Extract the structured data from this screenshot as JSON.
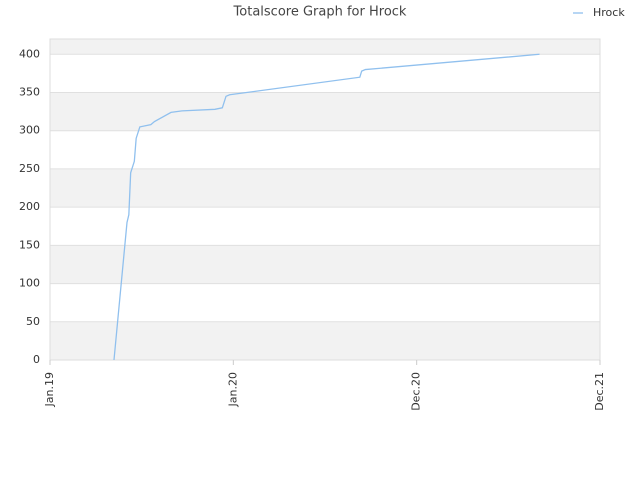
{
  "chart_data": {
    "type": "line",
    "title": "Totalscore Graph for Hrock",
    "series": [
      {
        "name": "Hrock",
        "color": "#90c0ee",
        "x": [
          0.349,
          0.42,
          0.43,
          0.44,
          0.46,
          0.47,
          0.49,
          0.55,
          0.57,
          0.66,
          0.72,
          0.9,
          0.94,
          0.96,
          0.98,
          1.69,
          1.7,
          1.72,
          2.67
        ],
        "values": [
          0,
          180,
          190,
          245,
          260,
          290,
          305,
          308,
          312,
          324,
          326,
          328,
          330,
          345,
          347,
          370,
          378,
          380,
          400
        ]
      }
    ],
    "xlim": [
      0,
      3
    ],
    "xticks": [
      {
        "value": 0,
        "label": "Jan.19"
      },
      {
        "value": 1,
        "label": "Jan.20"
      },
      {
        "value": 2,
        "label": "Dec.20"
      },
      {
        "value": 3,
        "label": "Dec.21"
      }
    ],
    "ylim": [
      0,
      420
    ],
    "yticks": [
      0,
      50,
      100,
      150,
      200,
      250,
      300,
      350,
      400
    ],
    "grid": true
  }
}
